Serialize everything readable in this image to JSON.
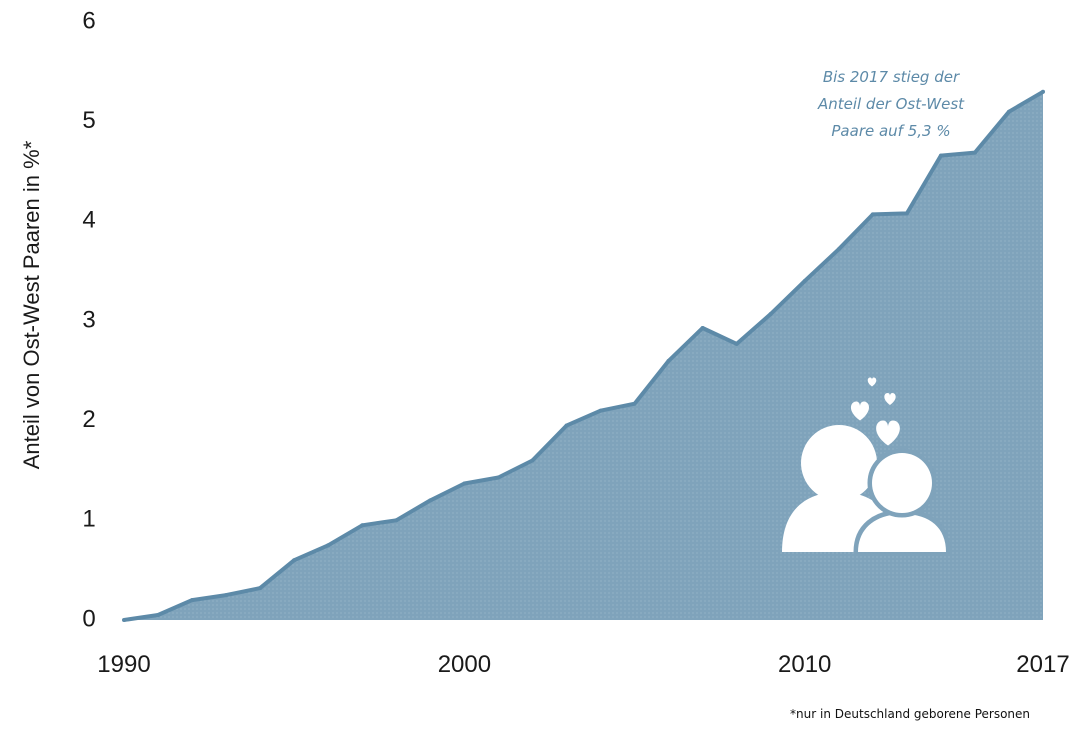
{
  "chart_data": {
    "type": "area",
    "ylabel": "Anteil von Ost-West Paaren in %*",
    "ylim": [
      0,
      6
    ],
    "yticks": [
      "0",
      "1",
      "2",
      "3",
      "4",
      "5",
      "6"
    ],
    "xticks": [
      "1990",
      "2000",
      "2010",
      "2017"
    ],
    "xlim": [
      1990,
      2017
    ],
    "x": [
      1990,
      1991,
      1992,
      1993,
      1994,
      1995,
      1996,
      1997,
      1998,
      1999,
      2000,
      2001,
      2002,
      2003,
      2004,
      2005,
      2006,
      2007,
      2008,
      2009,
      2010,
      2011,
      2012,
      2013,
      2014,
      2015,
      2016,
      2017
    ],
    "values": [
      0.0,
      0.05,
      0.2,
      0.25,
      0.32,
      0.6,
      0.75,
      0.95,
      1.0,
      1.2,
      1.37,
      1.43,
      1.6,
      1.95,
      2.1,
      2.17,
      2.6,
      2.93,
      2.77,
      3.07,
      3.4,
      3.72,
      4.07,
      4.08,
      4.66,
      4.69,
      5.1,
      5.3
    ],
    "annotation": [
      "Bis 2017 stieg der",
      "Anteil der Ost-West",
      "Paare auf 5,3 %"
    ],
    "footnote": "*nur in Deutschland geborene Personen",
    "colors": {
      "fill": "#7fa3bb",
      "line": "#5d8aa8",
      "text": "#5d8aa8"
    }
  }
}
